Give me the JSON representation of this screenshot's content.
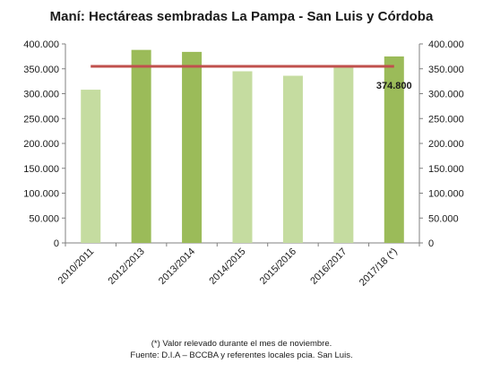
{
  "chart_data": {
    "type": "bar",
    "title": "Maní: Hectáreas sembradas La Pampa - San Luis y Córdoba",
    "categories": [
      "2010/2011",
      "2012/2013",
      "2013/2014",
      "2014/2015",
      "2015/2016",
      "2016/2017",
      "2017/18 (*)"
    ],
    "values": [
      308000,
      388000,
      384000,
      345000,
      336000,
      355000,
      374800
    ],
    "bar_colors": [
      "#c5dca0",
      "#9bbb59",
      "#9bbb59",
      "#c5dca0",
      "#c5dca0",
      "#c5dca0",
      "#9bbb59"
    ],
    "average_line": {
      "value": 355000,
      "color": "#c0504d"
    },
    "ylim": [
      0,
      400000
    ],
    "yticks": [
      "0",
      "50.000",
      "100.000",
      "150.000",
      "200.000",
      "250.000",
      "300.000",
      "350.000",
      "400.000"
    ],
    "data_label": "374.800",
    "xlabel": "",
    "ylabel": "",
    "grid": false
  },
  "notes": {
    "line1": "(*) Valor relevado durante el mes de noviembre.",
    "line2": "Fuente: D.I.A – BCCBA y referentes locales pcia. San Luis."
  }
}
